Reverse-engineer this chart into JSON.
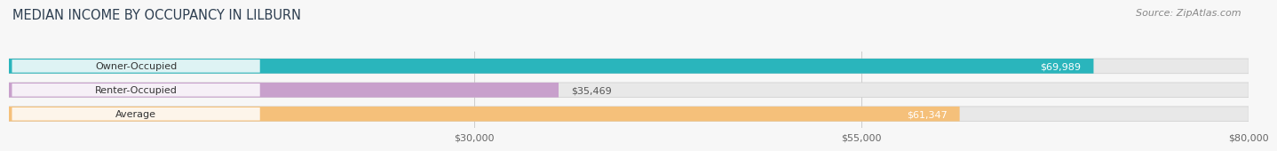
{
  "title": "MEDIAN INCOME BY OCCUPANCY IN LILBURN",
  "source": "Source: ZipAtlas.com",
  "categories": [
    "Owner-Occupied",
    "Renter-Occupied",
    "Average"
  ],
  "values": [
    69989,
    35469,
    61347
  ],
  "labels": [
    "$69,989",
    "$35,469",
    "$61,347"
  ],
  "bar_colors": [
    "#2ab5bc",
    "#c8a0cc",
    "#f5c07a"
  ],
  "xlim_max": 80000,
  "xticks": [
    30000,
    55000,
    80000
  ],
  "xtick_labels": [
    "$30,000",
    "$55,000",
    "$80,000"
  ],
  "title_color": "#2d3e50",
  "title_fontsize": 10.5,
  "source_fontsize": 8,
  "label_fontsize": 8,
  "tick_fontsize": 8,
  "bar_height": 0.62,
  "background_color": "#f7f7f7",
  "bar_bg_color": "#e8e8e8",
  "value_label_color_owner": "#ffffff",
  "value_label_color_renter": "#555555",
  "value_label_color_average": "#ffffff"
}
